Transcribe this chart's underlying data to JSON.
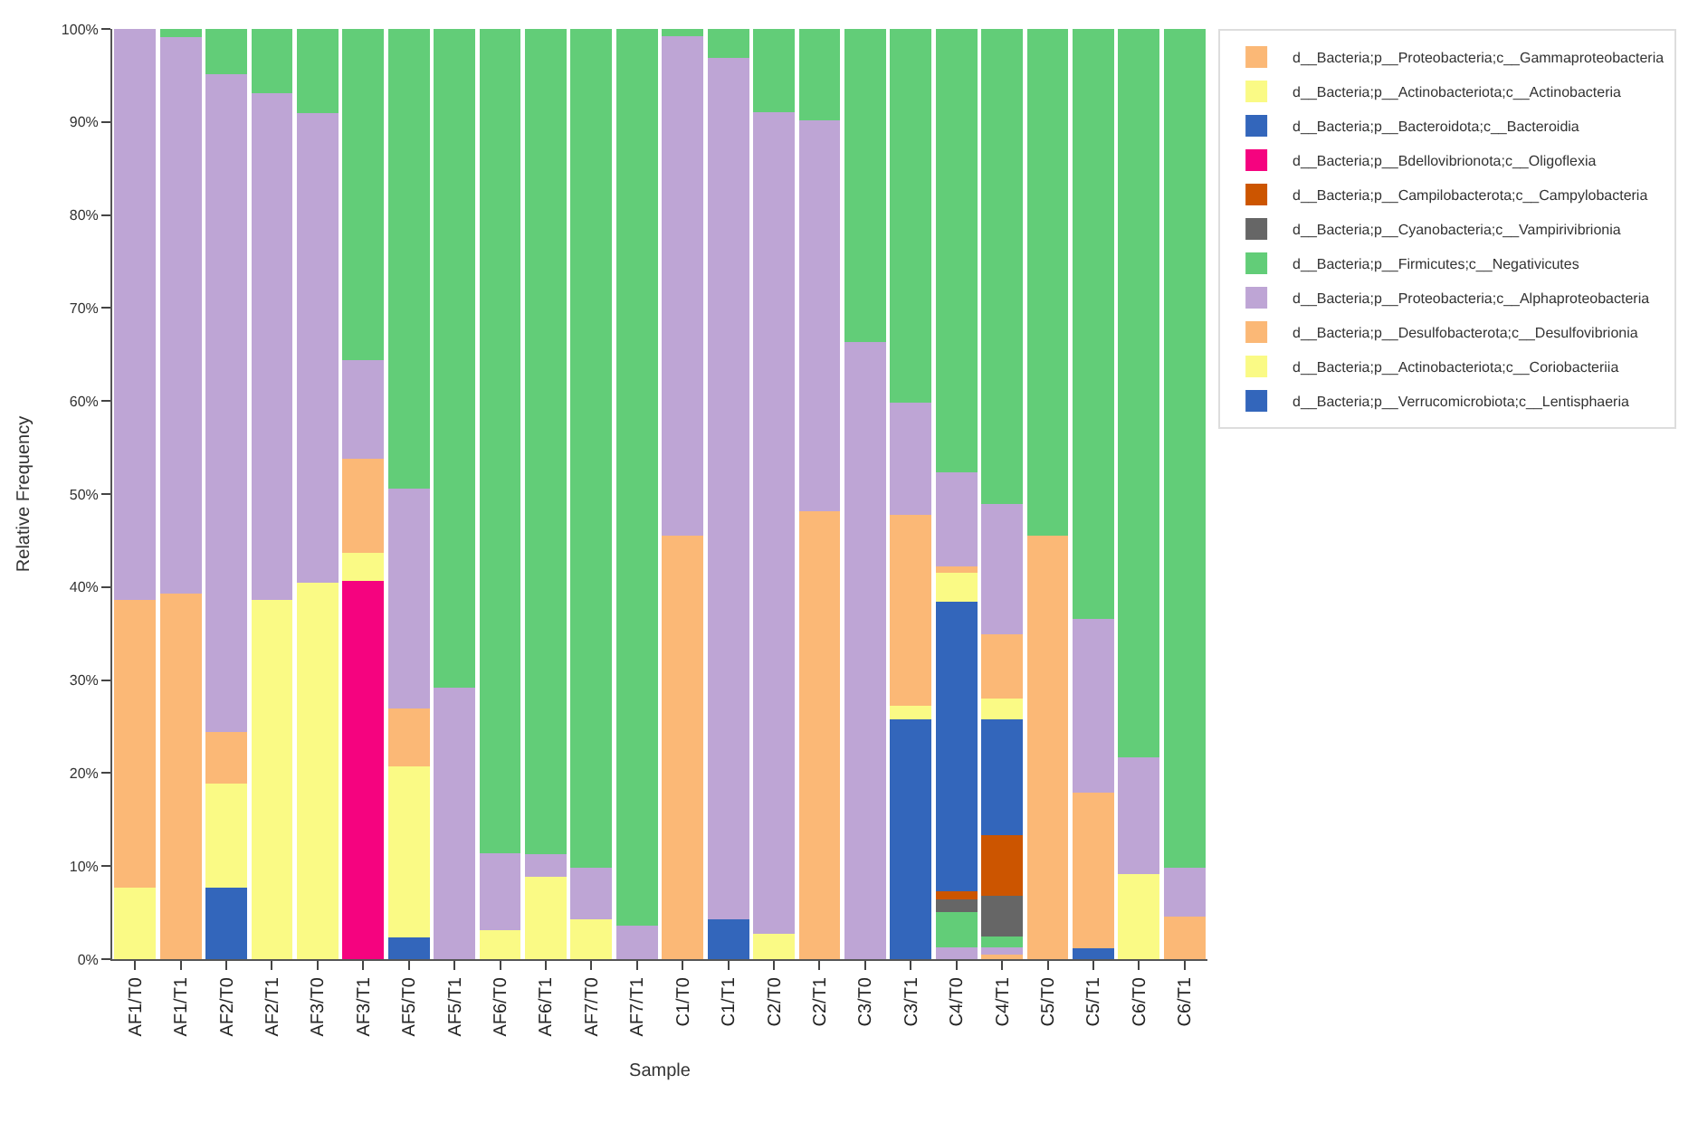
{
  "chart_data": {
    "type": "bar",
    "stacked": true,
    "xlabel": "Sample",
    "ylabel": "Relative Frequency",
    "categories": [
      "AF1/T0",
      "AF1/T1",
      "AF2/T0",
      "AF2/T1",
      "AF3/T0",
      "AF3/T1",
      "AF5/T0",
      "AF5/T1",
      "AF6/T0",
      "AF6/T1",
      "AF7/T0",
      "AF7/T1",
      "C1/T0",
      "C1/T1",
      "C2/T0",
      "C2/T1",
      "C3/T0",
      "C3/T1",
      "C4/T0",
      "C4/T1",
      "C5/T0",
      "C5/T1",
      "C6/T0",
      "C6/T1"
    ],
    "ylim": [
      0,
      100
    ],
    "yticks": [
      {
        "value": 0,
        "label": "0%"
      },
      {
        "value": 10,
        "label": "10%"
      },
      {
        "value": 20,
        "label": "20%"
      },
      {
        "value": 30,
        "label": "30%"
      },
      {
        "value": 40,
        "label": "40%"
      },
      {
        "value": 50,
        "label": "50%"
      },
      {
        "value": 60,
        "label": "60%"
      },
      {
        "value": 70,
        "label": "70%"
      },
      {
        "value": 80,
        "label": "80%"
      },
      {
        "value": 90,
        "label": "90%"
      },
      {
        "value": 100,
        "label": "100%"
      }
    ],
    "legend": "top right",
    "series": [
      {
        "name": "d__Bacteria;p__Verrucomicrobiota;c__Lentisphaeria",
        "color": "#3366bb",
        "values": [
          0,
          0,
          0,
          0,
          0,
          0,
          0,
          0,
          0,
          0,
          0,
          0,
          0,
          0,
          0,
          0,
          0,
          0,
          0,
          0,
          0,
          0,
          0,
          0
        ]
      },
      {
        "name": "d__Bacteria;p__Actinobacteriota;c__Coriobacteriia",
        "color": "#fafa85",
        "values": [
          0,
          0,
          0,
          0,
          0,
          0,
          0,
          0,
          0,
          0,
          0,
          0,
          0,
          0,
          0,
          0,
          0,
          0,
          0,
          0,
          0,
          0,
          0,
          0
        ]
      },
      {
        "name": "d__Bacteria;p__Desulfobacterota;c__Desulfovibrionia",
        "color": "#fbb876",
        "values": [
          0,
          0,
          0,
          0,
          0,
          0,
          0,
          0,
          0,
          0,
          0,
          0,
          0,
          0,
          0,
          0,
          0,
          0,
          0,
          0.5,
          0,
          0,
          0,
          0
        ]
      },
      {
        "name": "d__Bacteria;p__Proteobacteria;c__Alphaproteobacteria",
        "color": "#bea5d5",
        "values": [
          0,
          0,
          0,
          0,
          0,
          0,
          0,
          0,
          0,
          0,
          0,
          0,
          0,
          0,
          0,
          0,
          0,
          0,
          1.3,
          0.8,
          0,
          0,
          0,
          0
        ]
      },
      {
        "name": "d__Bacteria;p__Firmicutes;c__Negativicutes",
        "color": "#62cd78",
        "values": [
          0,
          0,
          0,
          0,
          0,
          0,
          0,
          0,
          0,
          0,
          0,
          0,
          0,
          0,
          0,
          0,
          0,
          0,
          3.8,
          1.1,
          0,
          0,
          0,
          0
        ]
      },
      {
        "name": "d__Bacteria;p__Cyanobacteria;c__Vampirivibrionia",
        "color": "#666666",
        "values": [
          0,
          0,
          0,
          0,
          0,
          0,
          0,
          0,
          0,
          0,
          0,
          0,
          0,
          0,
          0,
          0,
          0,
          0,
          1.3,
          4.4,
          0,
          0,
          0,
          0
        ]
      },
      {
        "name": "d__Bacteria;p__Campilobacterota;c__Campylobacteria",
        "color": "#cc5500",
        "values": [
          0,
          0,
          0,
          0,
          0,
          0,
          0,
          0,
          0,
          0,
          0,
          0,
          0,
          0,
          0,
          0,
          0,
          0,
          0.9,
          6.5,
          0,
          0,
          0,
          0
        ]
      },
      {
        "name": "d__Bacteria;p__Bdellovibrionota;c__Oligoflexia",
        "color": "#f5037f",
        "values": [
          0,
          0,
          0,
          0,
          0,
          40.7,
          0,
          0,
          0,
          0,
          0,
          0,
          0,
          0,
          0,
          0,
          0,
          0,
          0,
          0,
          0,
          0,
          0,
          0
        ]
      },
      {
        "name": "d__Bacteria;p__Bacteroidota;c__Bacteroidia",
        "color": "#3366bb",
        "values": [
          0,
          0,
          7.7,
          0,
          0,
          0,
          2.3,
          0,
          0,
          0,
          0,
          0,
          0,
          4.3,
          0,
          0,
          0,
          25.8,
          31.1,
          12.5,
          0,
          1.2,
          0,
          0
        ]
      },
      {
        "name": "d__Bacteria;p__Actinobacteriota;c__Actinobacteria",
        "color": "#fafa85",
        "values": [
          7.7,
          0,
          11.2,
          38.6,
          40.5,
          3.0,
          18.4,
          0,
          3.1,
          8.9,
          4.3,
          0,
          0,
          0,
          2.7,
          0,
          0,
          1.4,
          3.1,
          2.2,
          0,
          0,
          9.1,
          0
        ]
      },
      {
        "name": "d__Bacteria;p__Proteobacteria;c__Gammaproteobacteria",
        "color": "#fbb876",
        "values": [
          30.9,
          39.3,
          5.5,
          0,
          0,
          10.1,
          6.2,
          0,
          0,
          0,
          0,
          0,
          45.5,
          0,
          0,
          48.2,
          0,
          20.6,
          0.7,
          6.9,
          45.5,
          16.7,
          0,
          4.6
        ]
      },
      {
        "color": "#bea5d5",
        "values": [
          61.4,
          59.8,
          70.7,
          54.5,
          50.5,
          10.6,
          23.7,
          29.2,
          8.3,
          2.4,
          5.5,
          3.6,
          53.7,
          92.6,
          88.4,
          42.0,
          66.3,
          12.0,
          10.1,
          14.0,
          0,
          18.7,
          12.6,
          5.2
        ]
      },
      {
        "color": "#62cd78",
        "values": [
          0,
          0.9,
          4.9,
          6.9,
          9.0,
          35.6,
          49.4,
          70.8,
          88.6,
          88.7,
          90.2,
          96.4,
          0.8,
          3.1,
          8.9,
          9.8,
          33.7,
          40.2,
          47.7,
          51.1,
          54.5,
          63.4,
          78.3,
          90.2
        ]
      }
    ]
  }
}
